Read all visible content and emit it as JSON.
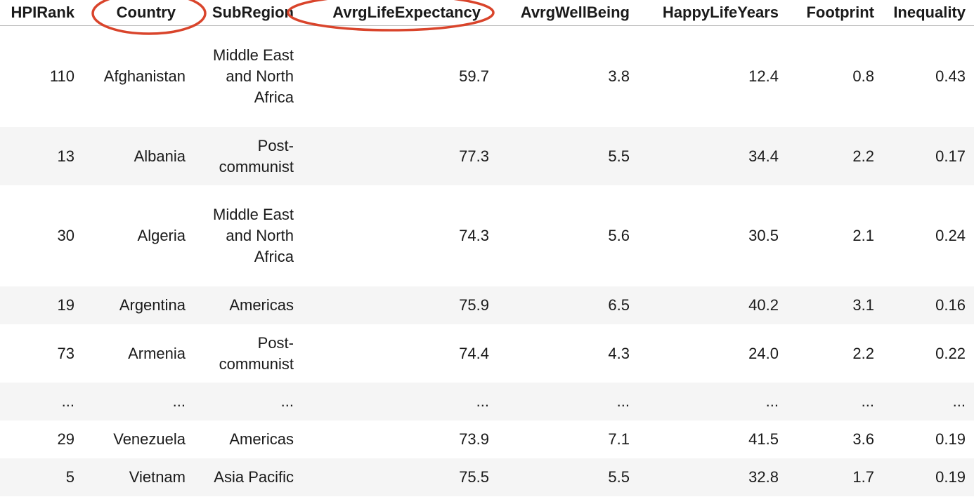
{
  "table": {
    "columns": [
      "HPIRank",
      "Country",
      "SubRegion",
      "AvrgLifeExpectancy",
      "AvrgWellBeing",
      "HappyLifeYears",
      "Footprint",
      "Inequality"
    ],
    "rows": [
      [
        "110",
        "Afghanistan",
        "Middle East and North Africa",
        "59.7",
        "3.8",
        "12.4",
        "0.8",
        "0.43"
      ],
      [
        "13",
        "Albania",
        "Post-communist",
        "77.3",
        "5.5",
        "34.4",
        "2.2",
        "0.17"
      ],
      [
        "30",
        "Algeria",
        "Middle East and North Africa",
        "74.3",
        "5.6",
        "30.5",
        "2.1",
        "0.24"
      ],
      [
        "19",
        "Argentina",
        "Americas",
        "75.9",
        "6.5",
        "40.2",
        "3.1",
        "0.16"
      ],
      [
        "73",
        "Armenia",
        "Post-communist",
        "74.4",
        "4.3",
        "24.0",
        "2.2",
        "0.22"
      ],
      [
        "...",
        "...",
        "...",
        "...",
        "...",
        "...",
        "...",
        "..."
      ],
      [
        "29",
        "Venezuela",
        "Americas",
        "73.9",
        "7.1",
        "41.5",
        "3.6",
        "0.19"
      ],
      [
        "5",
        "Vietnam",
        "Asia Pacific",
        "75.5",
        "5.5",
        "32.8",
        "1.7",
        "0.19"
      ]
    ]
  },
  "annotations": {
    "circled_columns": [
      "Country",
      "AvrgLifeExpectancy"
    ],
    "color": "#d9442b"
  }
}
